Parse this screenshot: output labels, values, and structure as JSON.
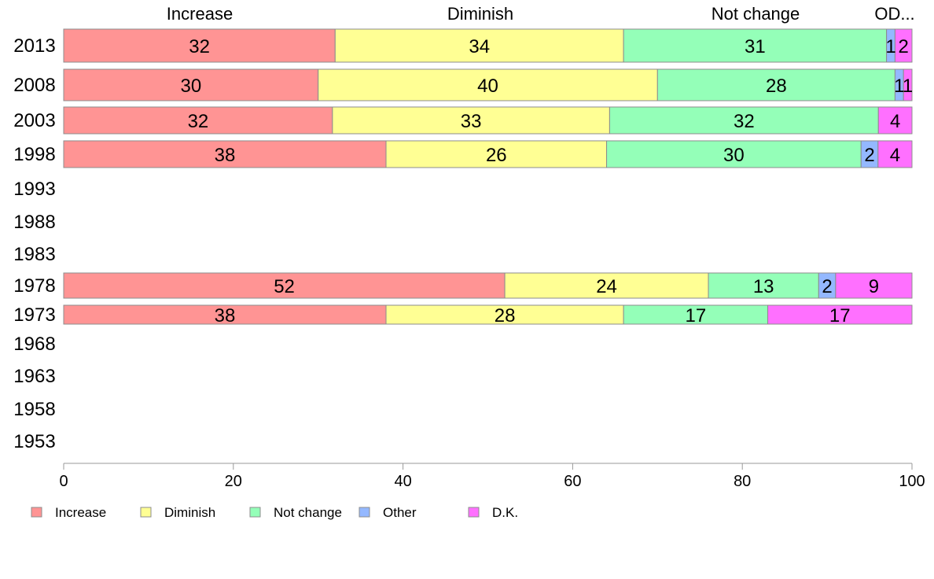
{
  "chart_data": {
    "type": "bar",
    "orientation": "horizontal",
    "stacked": true,
    "categories": [
      "2013",
      "2008",
      "2003",
      "1998",
      "1993",
      "1988",
      "1983",
      "1978",
      "1973",
      "1968",
      "1963",
      "1958",
      "1953"
    ],
    "series": [
      {
        "name": "Increase",
        "color": "#ff9494",
        "values": [
          32,
          30,
          32,
          38,
          null,
          null,
          null,
          52,
          38,
          null,
          null,
          null,
          null
        ]
      },
      {
        "name": "Diminish",
        "color": "#ffff94",
        "values": [
          34,
          40,
          33,
          26,
          null,
          null,
          null,
          24,
          28,
          null,
          null,
          null,
          null
        ]
      },
      {
        "name": "Not change",
        "color": "#94ffb8",
        "values": [
          31,
          28,
          32,
          30,
          null,
          null,
          null,
          13,
          17,
          null,
          null,
          null,
          null
        ]
      },
      {
        "name": "Other",
        "color": "#94b8ff",
        "values": [
          1,
          1,
          null,
          2,
          null,
          null,
          null,
          2,
          null,
          null,
          null,
          null,
          null
        ]
      },
      {
        "name": "D.K.",
        "color": "#ff70ff",
        "values": [
          2,
          1,
          4,
          4,
          null,
          null,
          null,
          9,
          17,
          null,
          null,
          null,
          null
        ]
      }
    ],
    "column_headers": [
      "Increase",
      "Diminish",
      "Not change",
      "OD..."
    ],
    "xlim": [
      0,
      100
    ],
    "xticks": [
      "0",
      "20",
      "40",
      "60",
      "80",
      "100"
    ],
    "legend_position": "bottom",
    "grid": false
  }
}
